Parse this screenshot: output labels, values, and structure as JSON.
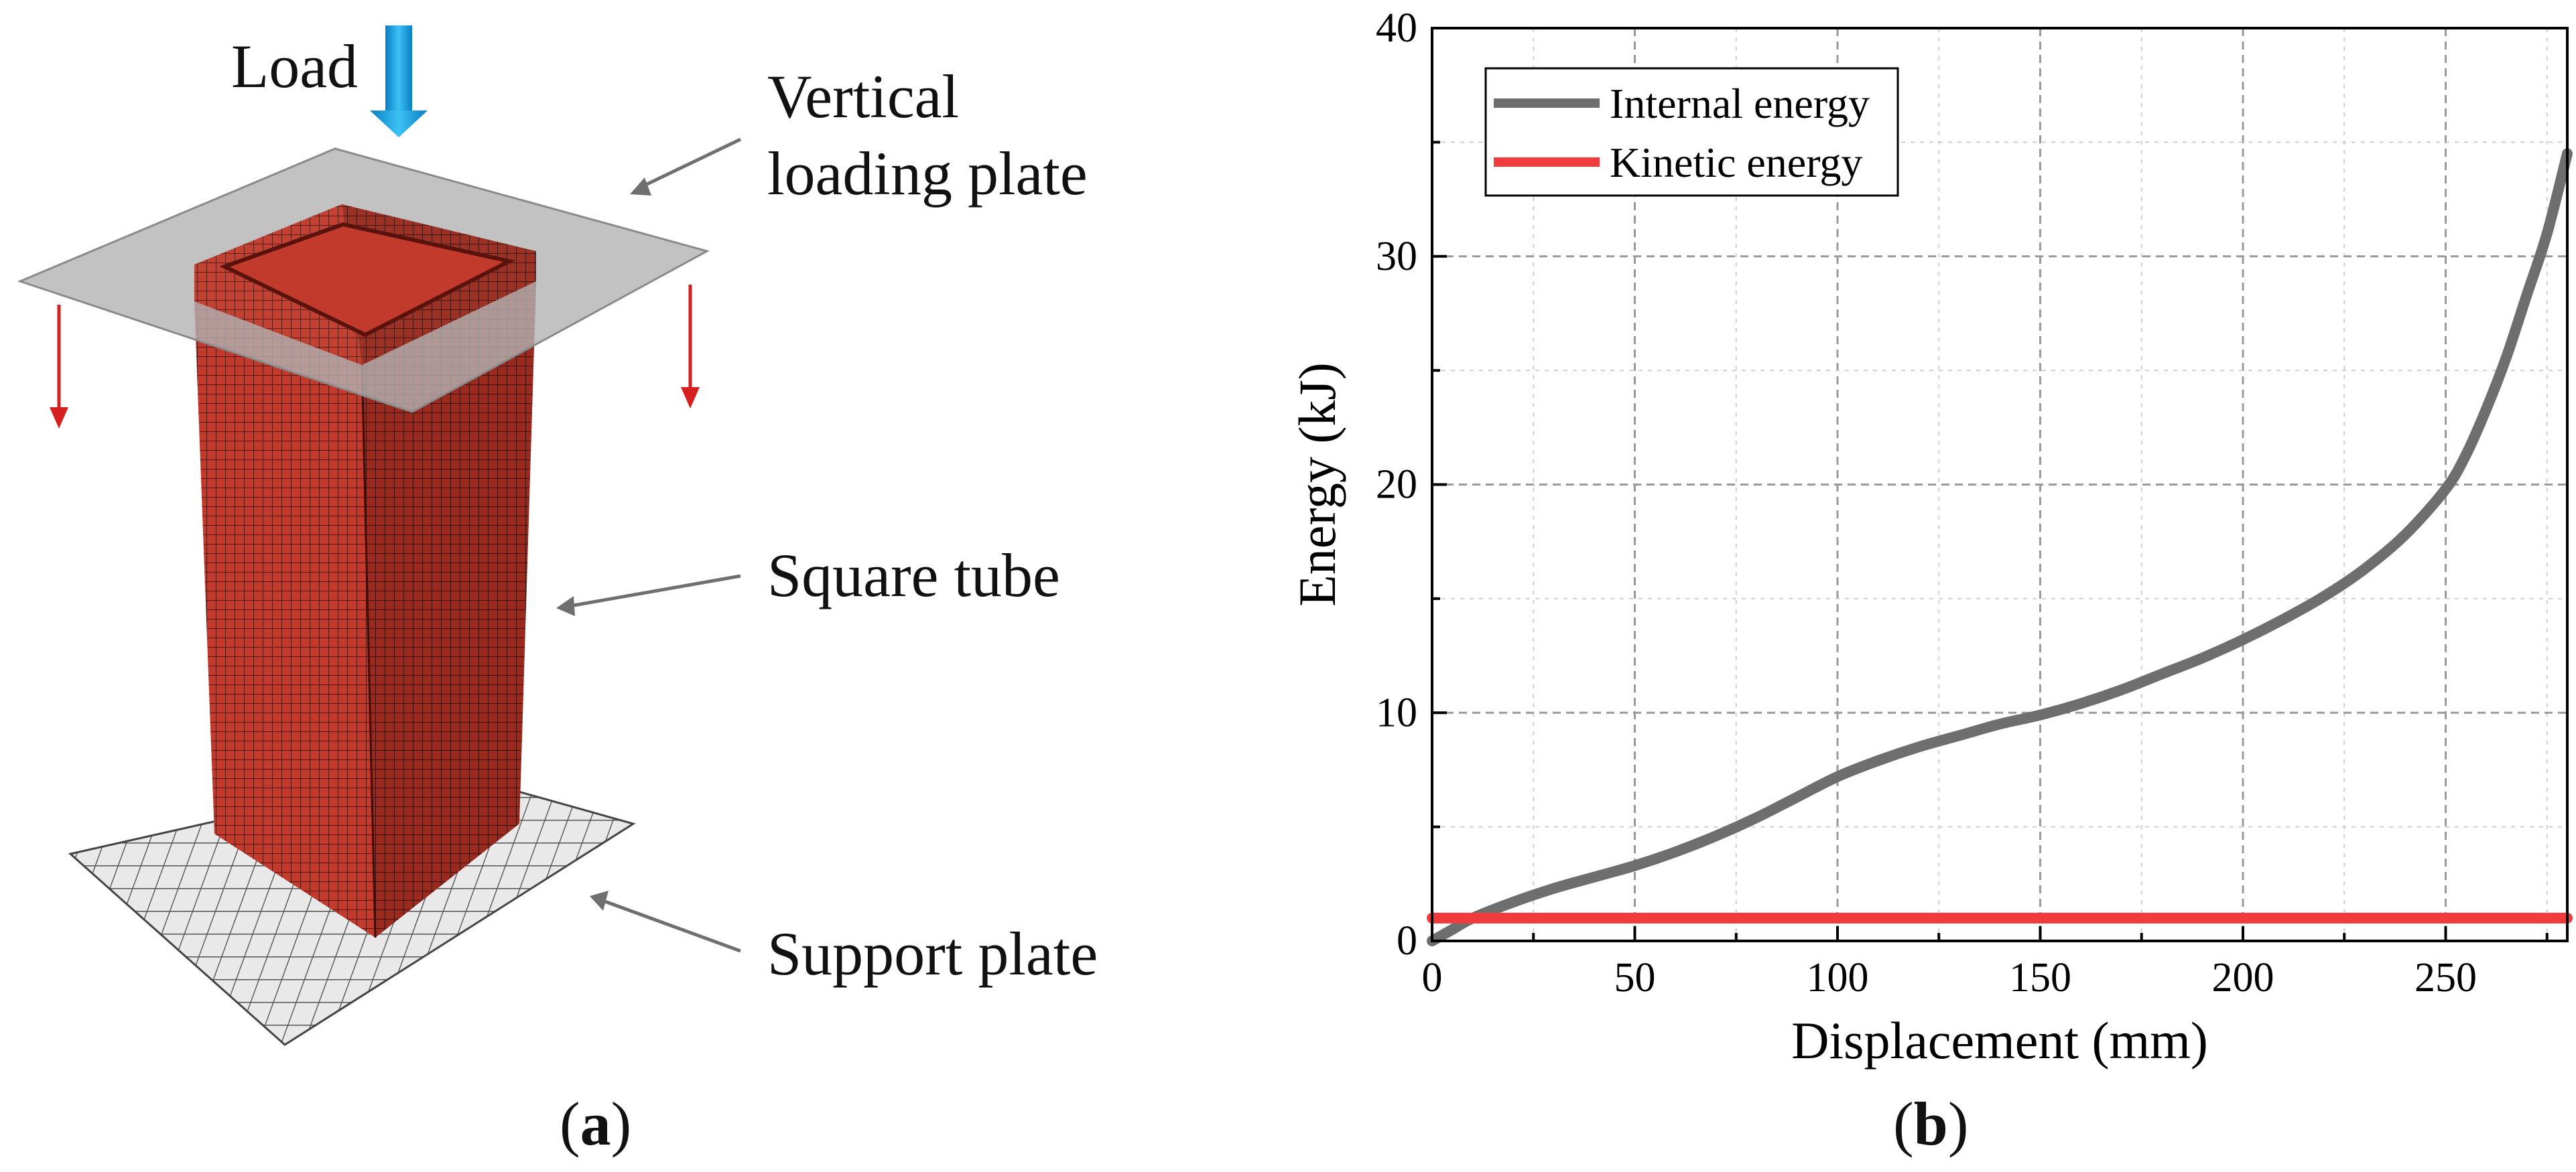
{
  "panel_a": {
    "load_label": "Load",
    "labels": {
      "vertical_plate_line1": "Vertical",
      "vertical_plate_line2": "loading plate",
      "square_tube": "Square tube",
      "support_plate": "Support plate"
    },
    "caption_letter": "a",
    "colors": {
      "tube": "#c0392b",
      "plate": "#b9b9b9",
      "arrow_red": "#d61f1f",
      "load_arrow": "#1aa3e8",
      "pointer": "#6f6f6f"
    }
  },
  "panel_b": {
    "caption_letter": "b"
  },
  "chart_data": {
    "type": "line",
    "title": "",
    "xlabel": "Displacement (mm)",
    "ylabel": "Energy (kJ)",
    "xlim": [
      0,
      280
    ],
    "ylim": [
      0,
      40
    ],
    "xticks": [
      0,
      50,
      100,
      150,
      200,
      250
    ],
    "yticks": [
      0,
      10,
      20,
      30,
      40
    ],
    "grid": true,
    "legend_position": "top-left",
    "series": [
      {
        "name": "Internal energy",
        "color": "#6e6e6e",
        "x": [
          0,
          5,
          10,
          20,
          30,
          40,
          50,
          60,
          70,
          80,
          90,
          100,
          110,
          120,
          130,
          140,
          150,
          160,
          170,
          180,
          190,
          200,
          210,
          220,
          230,
          240,
          250,
          255,
          260,
          265,
          270,
          275,
          280
        ],
        "y": [
          0,
          0.5,
          1.0,
          1.7,
          2.3,
          2.8,
          3.3,
          3.9,
          4.6,
          5.4,
          6.3,
          7.2,
          7.9,
          8.5,
          9.0,
          9.5,
          9.9,
          10.4,
          11.0,
          11.7,
          12.4,
          13.2,
          14.1,
          15.1,
          16.3,
          17.8,
          19.8,
          21.3,
          23.3,
          25.6,
          28.3,
          31.0,
          34.5
        ]
      },
      {
        "name": "Kinetic energy",
        "color": "#f03c3c",
        "x": [
          0,
          280
        ],
        "y": [
          1,
          1
        ]
      }
    ]
  }
}
